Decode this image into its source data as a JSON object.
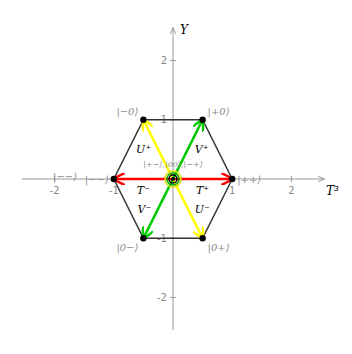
{
  "chart_data": {
    "type": "polygon",
    "x_label": "T³",
    "y_label": "Y",
    "x": [
      1,
      0.5,
      -0.5,
      -1,
      -0.5,
      0.5
    ],
    "values": [
      0,
      1,
      1,
      0,
      -1,
      -1
    ],
    "color": "#333333",
    "vertex_labels": [
      "|++⟩",
      "|+0⟩",
      "|−0⟩",
      "|−−⟩",
      "|0−⟩",
      "|0+⟩"
    ],
    "annotations": [
      {
        "text": "|−−⟩",
        "x": -1.62,
        "y": 0.05
      }
    ],
    "center_label": "|+−⟩,|00⟩,|−+⟩",
    "arrows": [
      {
        "label": "T⁺",
        "color": "#ff0000",
        "x": 1,
        "y": 0
      },
      {
        "label": "T⁻",
        "color": "#ff0000",
        "x": -1,
        "y": 0
      },
      {
        "label": "U⁺",
        "color": "#ffff00",
        "x": -0.5,
        "y": 1
      },
      {
        "label": "U⁻",
        "color": "#ffff00",
        "x": 0.5,
        "y": -1
      },
      {
        "label": "V⁺",
        "color": "#00cc00",
        "x": 0.5,
        "y": 1
      },
      {
        "label": "V⁻",
        "color": "#00cc00",
        "x": -0.5,
        "y": -1
      }
    ],
    "xlim": [
      -2.55,
      2.55
    ],
    "ylim": [
      -2.55,
      2.55
    ],
    "xticks": [
      -2,
      -1,
      1,
      2
    ],
    "yticks": [
      -2,
      -1,
      1,
      2
    ],
    "grid": false
  }
}
